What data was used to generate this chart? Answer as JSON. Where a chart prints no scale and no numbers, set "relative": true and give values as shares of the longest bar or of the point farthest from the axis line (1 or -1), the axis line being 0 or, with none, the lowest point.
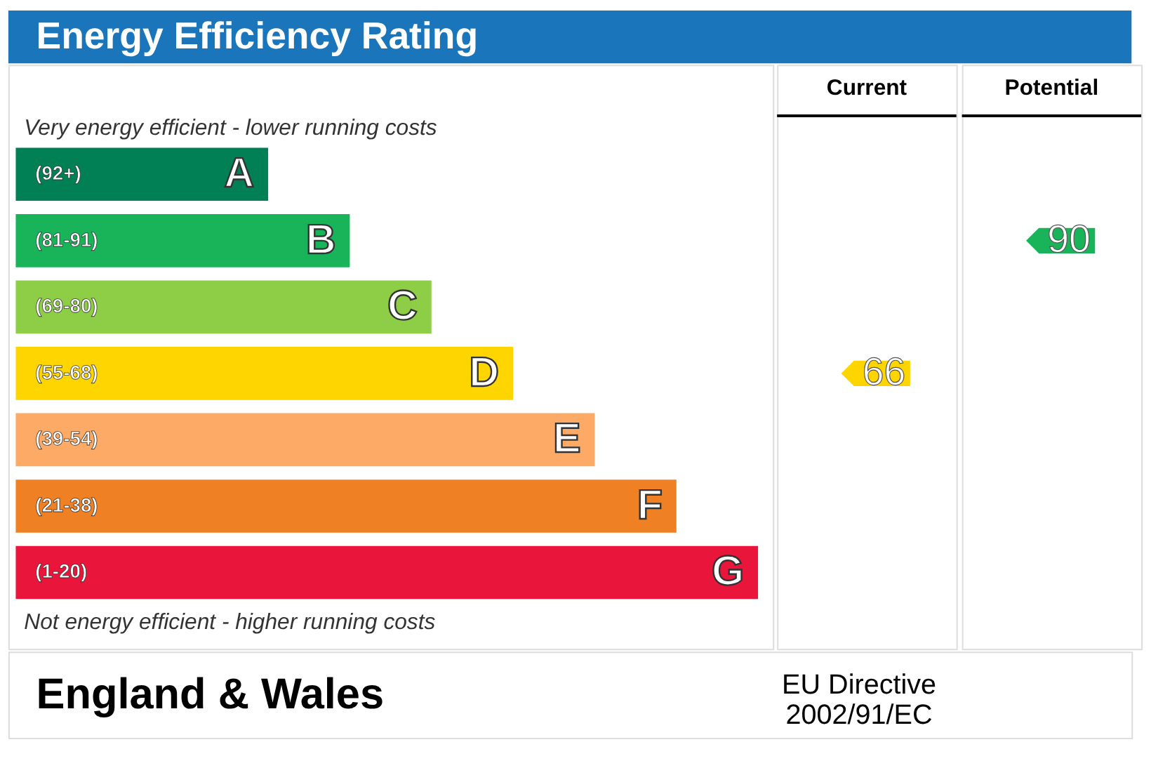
{
  "chart_data": {
    "type": "bar",
    "orientation": "horizontal",
    "relative": true,
    "title": "Energy Efficiency Rating",
    "categories": [
      "A",
      "B",
      "C",
      "D",
      "E",
      "F",
      "G"
    ],
    "values": [
      0.34,
      0.45,
      0.56,
      0.67,
      0.78,
      0.89,
      1.0
    ],
    "colors": [
      "#008054",
      "#19b459",
      "#8dce46",
      "#ffd500",
      "#fcaa65",
      "#ef8023",
      "#e9153b"
    ],
    "annotations": [
      "Very energy efficient - lower running costs",
      "Not energy efficient - higher running costs",
      "England & Wales",
      "EU Directive\n2002/91/EC",
      "(92+)",
      "(81-91)",
      "(69-80)",
      "(55-68)",
      "(39-54)",
      "(21-38)",
      "(1-20)",
      "Current",
      "Potential",
      "66",
      "90"
    ]
  }
}
